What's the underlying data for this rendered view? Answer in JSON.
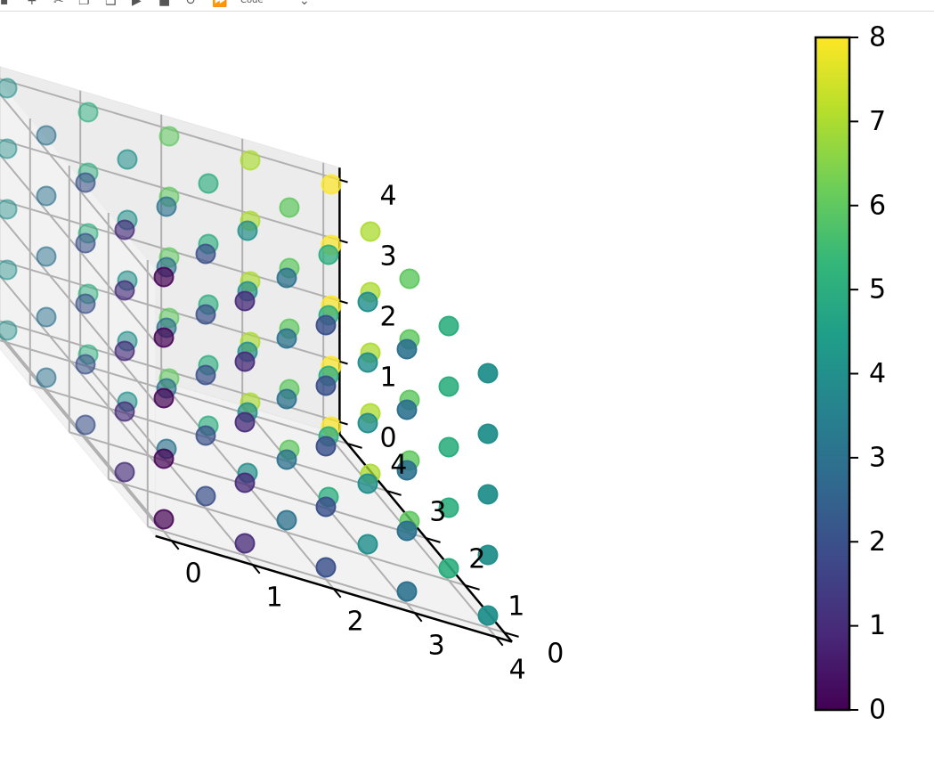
{
  "toolbar": {
    "buttons": [
      {
        "name": "save-icon",
        "glyph": "▪"
      },
      {
        "name": "add-icon",
        "glyph": "+"
      },
      {
        "name": "cut-icon",
        "glyph": "✂"
      },
      {
        "name": "copy-icon",
        "glyph": "❐"
      },
      {
        "name": "paste-icon",
        "glyph": "❑"
      },
      {
        "name": "run-icon",
        "glyph": "▶"
      },
      {
        "name": "stop-icon",
        "glyph": "■"
      },
      {
        "name": "restart-icon",
        "glyph": "↻"
      },
      {
        "name": "fast-forward-icon",
        "glyph": "⏩"
      }
    ],
    "cell_type": "Code",
    "dropdown_icon": "chevron-down-icon"
  },
  "chart_data": {
    "type": "scatter",
    "title": "",
    "xlabel": "",
    "ylabel": "",
    "zlabel": "",
    "x_ticks": [
      "0",
      "1",
      "2",
      "3",
      "4"
    ],
    "y_ticks": [
      "0",
      "1",
      "2",
      "3",
      "4"
    ],
    "z_ticks": [
      "0",
      "1",
      "2",
      "3",
      "4"
    ],
    "xlim": [
      0,
      4
    ],
    "ylim": [
      0,
      4
    ],
    "zlim": [
      0,
      4
    ],
    "grid": true,
    "grid_description": "5 x 5 x 5 grid of points at integer coordinates x, y, z in 0..4",
    "color_value": "x + y",
    "colormap": "viridis",
    "marker_alpha": 0.5,
    "colorbar": {
      "ticks": [
        "0",
        "1",
        "2",
        "3",
        "4",
        "5",
        "6",
        "7",
        "8"
      ],
      "range": [
        0,
        8
      ],
      "placement": "right"
    },
    "viridis_stops": [
      "#440154",
      "#482878",
      "#3e4989",
      "#31688e",
      "#26828e",
      "#1f9e89",
      "#35b779",
      "#6ece58",
      "#b5de2b",
      "#fde725"
    ]
  }
}
